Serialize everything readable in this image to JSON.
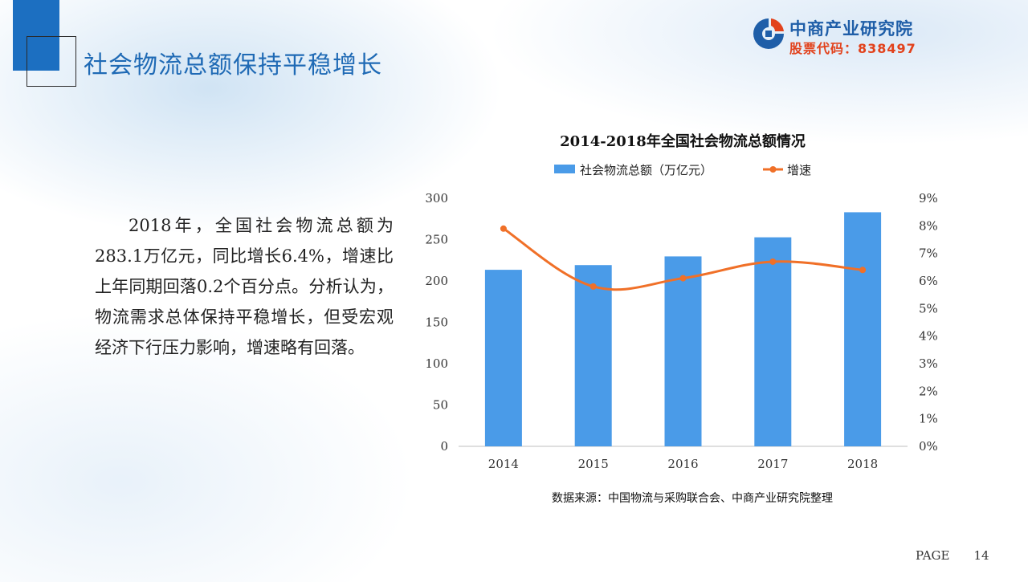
{
  "page": {
    "title": "社会物流总额保持平稳增长",
    "body_text": "2018年，全国社会物流总额为283.1万亿元，同比增长6.4%，增速比上年同期回落0.2个百分点。分析认为，物流需求总体保持平稳增长，但受宏观经济下行压力影响，增速略有回落。",
    "page_label": "PAGE",
    "page_number": "14"
  },
  "logo": {
    "name": "中商产业研究院",
    "stock_code": "股票代码：838497",
    "colors": {
      "blue": "#1f5ea8",
      "red": "#e2421c"
    }
  },
  "chart_data": {
    "type": "bar",
    "title": "2014-2018年全国社会物流总额情况",
    "categories": [
      "2014",
      "2015",
      "2016",
      "2017",
      "2018"
    ],
    "series": [
      {
        "name": "社会物流总额（万亿元）",
        "type": "bar",
        "axis": "left",
        "color": "#4a9be8",
        "values": [
          213.5,
          219.2,
          229.7,
          252.8,
          283.1
        ]
      },
      {
        "name": "增速",
        "type": "line",
        "axis": "right",
        "color": "#f07028",
        "values": [
          7.9,
          5.8,
          6.1,
          6.7,
          6.4
        ]
      }
    ],
    "y_left": {
      "min": 0,
      "max": 300,
      "step": 50,
      "ticks": [
        "0",
        "50",
        "100",
        "150",
        "200",
        "250",
        "300"
      ]
    },
    "y_right": {
      "min": 0,
      "max": 9,
      "step": 1,
      "ticks": [
        "0%",
        "1%",
        "2%",
        "3%",
        "4%",
        "5%",
        "6%",
        "7%",
        "8%",
        "9%"
      ]
    },
    "grid": false,
    "legend_position": "top",
    "source": "数据来源：中国物流与采购联合会、中商产业研究院整理"
  }
}
